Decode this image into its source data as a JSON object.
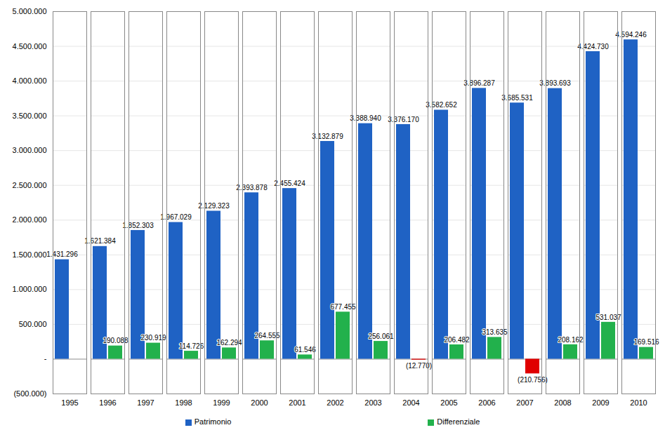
{
  "chart_data": {
    "type": "bar",
    "categories": [
      "1995",
      "1996",
      "1997",
      "1998",
      "1999",
      "2000",
      "2001",
      "2002",
      "2003",
      "2004",
      "2005",
      "2006",
      "2007",
      "2008",
      "2009",
      "2010"
    ],
    "series": [
      {
        "name": "Patrimonio",
        "color": "#1f62c4",
        "values": [
          1431296,
          1621384,
          1852303,
          1967029,
          2129323,
          2393878,
          2455424,
          3132879,
          3388940,
          3376170,
          3582652,
          3896287,
          3685531,
          3893693,
          4424730,
          4594246
        ],
        "value_labels": [
          "1.431.296",
          "1.621.384",
          "1.852.303",
          "1.967.029",
          "2.129.323",
          "2.393.878",
          "2.455.424",
          "3.132.879",
          "3.388.940",
          "3.376.170",
          "3.582.652",
          "3.896.287",
          "3.685.531",
          "3.893.693",
          "4.424.730",
          "4.594.246"
        ]
      },
      {
        "name": "Differenziale",
        "color": "#22b14c",
        "colors": [
          null,
          "#22b14c",
          "#22b14c",
          "#22b14c",
          "#22b14c",
          "#22b14c",
          "#22b14c",
          "#22b14c",
          "#22b14c",
          "#e00000",
          "#22b14c",
          "#22b14c",
          "#e00000",
          "#22b14c",
          "#22b14c",
          "#22b14c"
        ],
        "values": [
          null,
          190088,
          230919,
          114726,
          162294,
          264555,
          61546,
          677455,
          256061,
          -12770,
          206482,
          313635,
          -210756,
          208162,
          531037,
          169516
        ],
        "value_labels": [
          null,
          "190.088",
          "230.919",
          "114.726",
          "162.294",
          "264.555",
          "61.546",
          "677.455",
          "256.061",
          "(12.770)",
          "206.482",
          "313.635",
          "(210.756)",
          "208.162",
          "531.037",
          "169.516"
        ]
      }
    ],
    "ylim": [
      -500000,
      5000000
    ],
    "yticks": [
      {
        "value": -500000,
        "label": "(500.000)"
      },
      {
        "value": 0,
        "label": "-"
      },
      {
        "value": 500000,
        "label": "500.000"
      },
      {
        "value": 1000000,
        "label": "1.000.000"
      },
      {
        "value": 1500000,
        "label": "1.500.000"
      },
      {
        "value": 2000000,
        "label": "2.000.000"
      },
      {
        "value": 2500000,
        "label": "2.500.000"
      },
      {
        "value": 3000000,
        "label": "3.000.000"
      },
      {
        "value": 3500000,
        "label": "3.500.000"
      },
      {
        "value": 4000000,
        "label": "4.000.000"
      },
      {
        "value": 4500000,
        "label": "4.500.000"
      },
      {
        "value": 5000000,
        "label": "5.000.000"
      }
    ],
    "grid": true,
    "data_labels": true,
    "legend": "bottom"
  }
}
